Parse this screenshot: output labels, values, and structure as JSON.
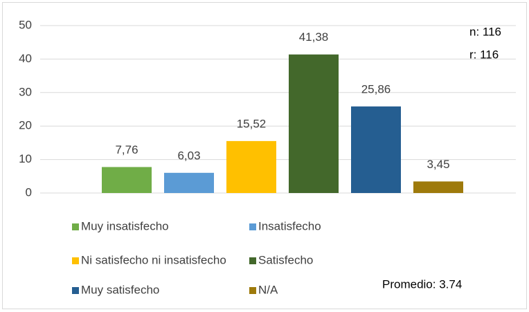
{
  "chart_data": {
    "type": "bar",
    "categories": [
      "Muy insatisfecho",
      "Insatisfecho",
      "Ni satisfecho ni insatisfecho",
      "Satisfecho",
      "Muy satisfecho",
      "N/A"
    ],
    "values": [
      7.76,
      6.03,
      15.52,
      41.38,
      25.86,
      3.45
    ],
    "value_labels": [
      "7,76",
      "6,03",
      "15,52",
      "41,38",
      "25,86",
      "3,45"
    ],
    "colors": [
      "#70ad47",
      "#5b9bd5",
      "#ffc000",
      "#43682b",
      "#255e91",
      "#9e7a0b"
    ],
    "ylim": [
      0,
      50
    ],
    "yticks": [
      0,
      10,
      20,
      30,
      40,
      50
    ],
    "grid": true,
    "legend": "bottom",
    "annotations": [
      "n: 116",
      "r: 116",
      "Promedio: 3.74"
    ]
  }
}
